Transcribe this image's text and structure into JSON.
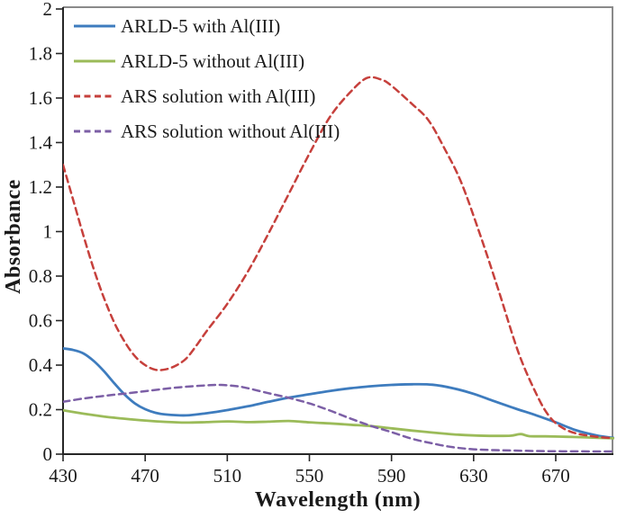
{
  "figure": {
    "background": "#ffffff"
  },
  "chart_data": {
    "type": "line",
    "title": "",
    "xlabel": "Wavelength (nm)",
    "ylabel": "Absorbance",
    "xlim": [
      430,
      698
    ],
    "ylim": [
      0,
      2
    ],
    "grid": false,
    "legend_position": "top-left-inside",
    "axis_color": "#262626",
    "border_color": "#8a8a8a",
    "tick_label_color": "#1a1a1a",
    "x_ticks": [
      430,
      470,
      510,
      550,
      590,
      630,
      670
    ],
    "x_tick_labels": [
      "430",
      "470",
      "510",
      "550",
      "590",
      "630",
      "670"
    ],
    "y_ticks": [
      0,
      0.2,
      0.4,
      0.6,
      0.8,
      1,
      1.2,
      1.4,
      1.6,
      1.8,
      2
    ],
    "y_tick_labels": [
      "0",
      "0.2",
      "0.4",
      "0.6",
      "0.8",
      "1",
      "1.2",
      "1.4",
      "1.6",
      "1.8",
      "2"
    ],
    "series": [
      {
        "name": "ARLD-5 with Al(III)",
        "color": "#3E7CBE",
        "style": "solid",
        "points": [
          [
            430,
            0.475
          ],
          [
            435,
            0.468
          ],
          [
            440,
            0.452
          ],
          [
            445,
            0.418
          ],
          [
            450,
            0.372
          ],
          [
            455,
            0.318
          ],
          [
            460,
            0.268
          ],
          [
            465,
            0.228
          ],
          [
            470,
            0.202
          ],
          [
            475,
            0.186
          ],
          [
            480,
            0.178
          ],
          [
            490,
            0.174
          ],
          [
            500,
            0.184
          ],
          [
            510,
            0.198
          ],
          [
            520,
            0.215
          ],
          [
            530,
            0.235
          ],
          [
            540,
            0.254
          ],
          [
            550,
            0.269
          ],
          [
            560,
            0.284
          ],
          [
            570,
            0.296
          ],
          [
            580,
            0.305
          ],
          [
            590,
            0.311
          ],
          [
            600,
            0.314
          ],
          [
            610,
            0.312
          ],
          [
            620,
            0.296
          ],
          [
            630,
            0.271
          ],
          [
            640,
            0.238
          ],
          [
            650,
            0.206
          ],
          [
            660,
            0.176
          ],
          [
            670,
            0.143
          ],
          [
            680,
            0.107
          ],
          [
            690,
            0.084
          ],
          [
            698,
            0.073
          ]
        ]
      },
      {
        "name": "ARLD-5 without Al(III)",
        "color": "#9BBB59",
        "style": "solid",
        "points": [
          [
            430,
            0.197
          ],
          [
            440,
            0.182
          ],
          [
            450,
            0.169
          ],
          [
            460,
            0.159
          ],
          [
            470,
            0.151
          ],
          [
            480,
            0.145
          ],
          [
            490,
            0.142
          ],
          [
            500,
            0.144
          ],
          [
            510,
            0.147
          ],
          [
            520,
            0.144
          ],
          [
            530,
            0.146
          ],
          [
            540,
            0.149
          ],
          [
            550,
            0.143
          ],
          [
            560,
            0.138
          ],
          [
            570,
            0.132
          ],
          [
            580,
            0.126
          ],
          [
            590,
            0.116
          ],
          [
            600,
            0.106
          ],
          [
            610,
            0.097
          ],
          [
            620,
            0.089
          ],
          [
            630,
            0.084
          ],
          [
            640,
            0.082
          ],
          [
            648,
            0.083
          ],
          [
            653,
            0.09
          ],
          [
            657,
            0.081
          ],
          [
            665,
            0.08
          ],
          [
            675,
            0.078
          ],
          [
            685,
            0.075
          ],
          [
            698,
            0.071
          ]
        ]
      },
      {
        "name": "ARS solution with Al(III)",
        "color": "#C6403C",
        "style": "dashed",
        "points": [
          [
            430,
            1.3
          ],
          [
            435,
            1.14
          ],
          [
            440,
            0.98
          ],
          [
            445,
            0.83
          ],
          [
            450,
            0.7
          ],
          [
            455,
            0.59
          ],
          [
            460,
            0.505
          ],
          [
            465,
            0.44
          ],
          [
            470,
            0.4
          ],
          [
            475,
            0.379
          ],
          [
            480,
            0.381
          ],
          [
            485,
            0.398
          ],
          [
            490,
            0.43
          ],
          [
            495,
            0.488
          ],
          [
            500,
            0.553
          ],
          [
            510,
            0.675
          ],
          [
            520,
            0.82
          ],
          [
            530,
            0.99
          ],
          [
            540,
            1.17
          ],
          [
            550,
            1.35
          ],
          [
            560,
            1.515
          ],
          [
            570,
            1.627
          ],
          [
            578,
            1.69
          ],
          [
            585,
            1.683
          ],
          [
            590,
            1.655
          ],
          [
            600,
            1.573
          ],
          [
            608,
            1.5
          ],
          [
            616,
            1.37
          ],
          [
            624,
            1.22
          ],
          [
            633,
            0.99
          ],
          [
            642,
            0.74
          ],
          [
            652,
            0.452
          ],
          [
            661,
            0.262
          ],
          [
            667,
            0.168
          ],
          [
            673,
            0.12
          ],
          [
            680,
            0.093
          ],
          [
            690,
            0.078
          ],
          [
            698,
            0.072
          ]
        ]
      },
      {
        "name": "ARS solution without Al(III)",
        "color": "#7C5FA6",
        "style": "dashed",
        "points": [
          [
            430,
            0.235
          ],
          [
            440,
            0.25
          ],
          [
            450,
            0.262
          ],
          [
            460,
            0.272
          ],
          [
            470,
            0.283
          ],
          [
            480,
            0.294
          ],
          [
            490,
            0.303
          ],
          [
            500,
            0.309
          ],
          [
            507,
            0.311
          ],
          [
            515,
            0.305
          ],
          [
            520,
            0.296
          ],
          [
            530,
            0.274
          ],
          [
            540,
            0.253
          ],
          [
            550,
            0.228
          ],
          [
            560,
            0.196
          ],
          [
            570,
            0.16
          ],
          [
            580,
            0.127
          ],
          [
            590,
            0.099
          ],
          [
            600,
            0.069
          ],
          [
            610,
            0.048
          ],
          [
            620,
            0.031
          ],
          [
            630,
            0.022
          ],
          [
            640,
            0.018
          ],
          [
            650,
            0.016
          ],
          [
            660,
            0.014
          ],
          [
            670,
            0.013
          ],
          [
            680,
            0.0125
          ],
          [
            690,
            0.012
          ],
          [
            698,
            0.012
          ]
        ]
      }
    ]
  }
}
